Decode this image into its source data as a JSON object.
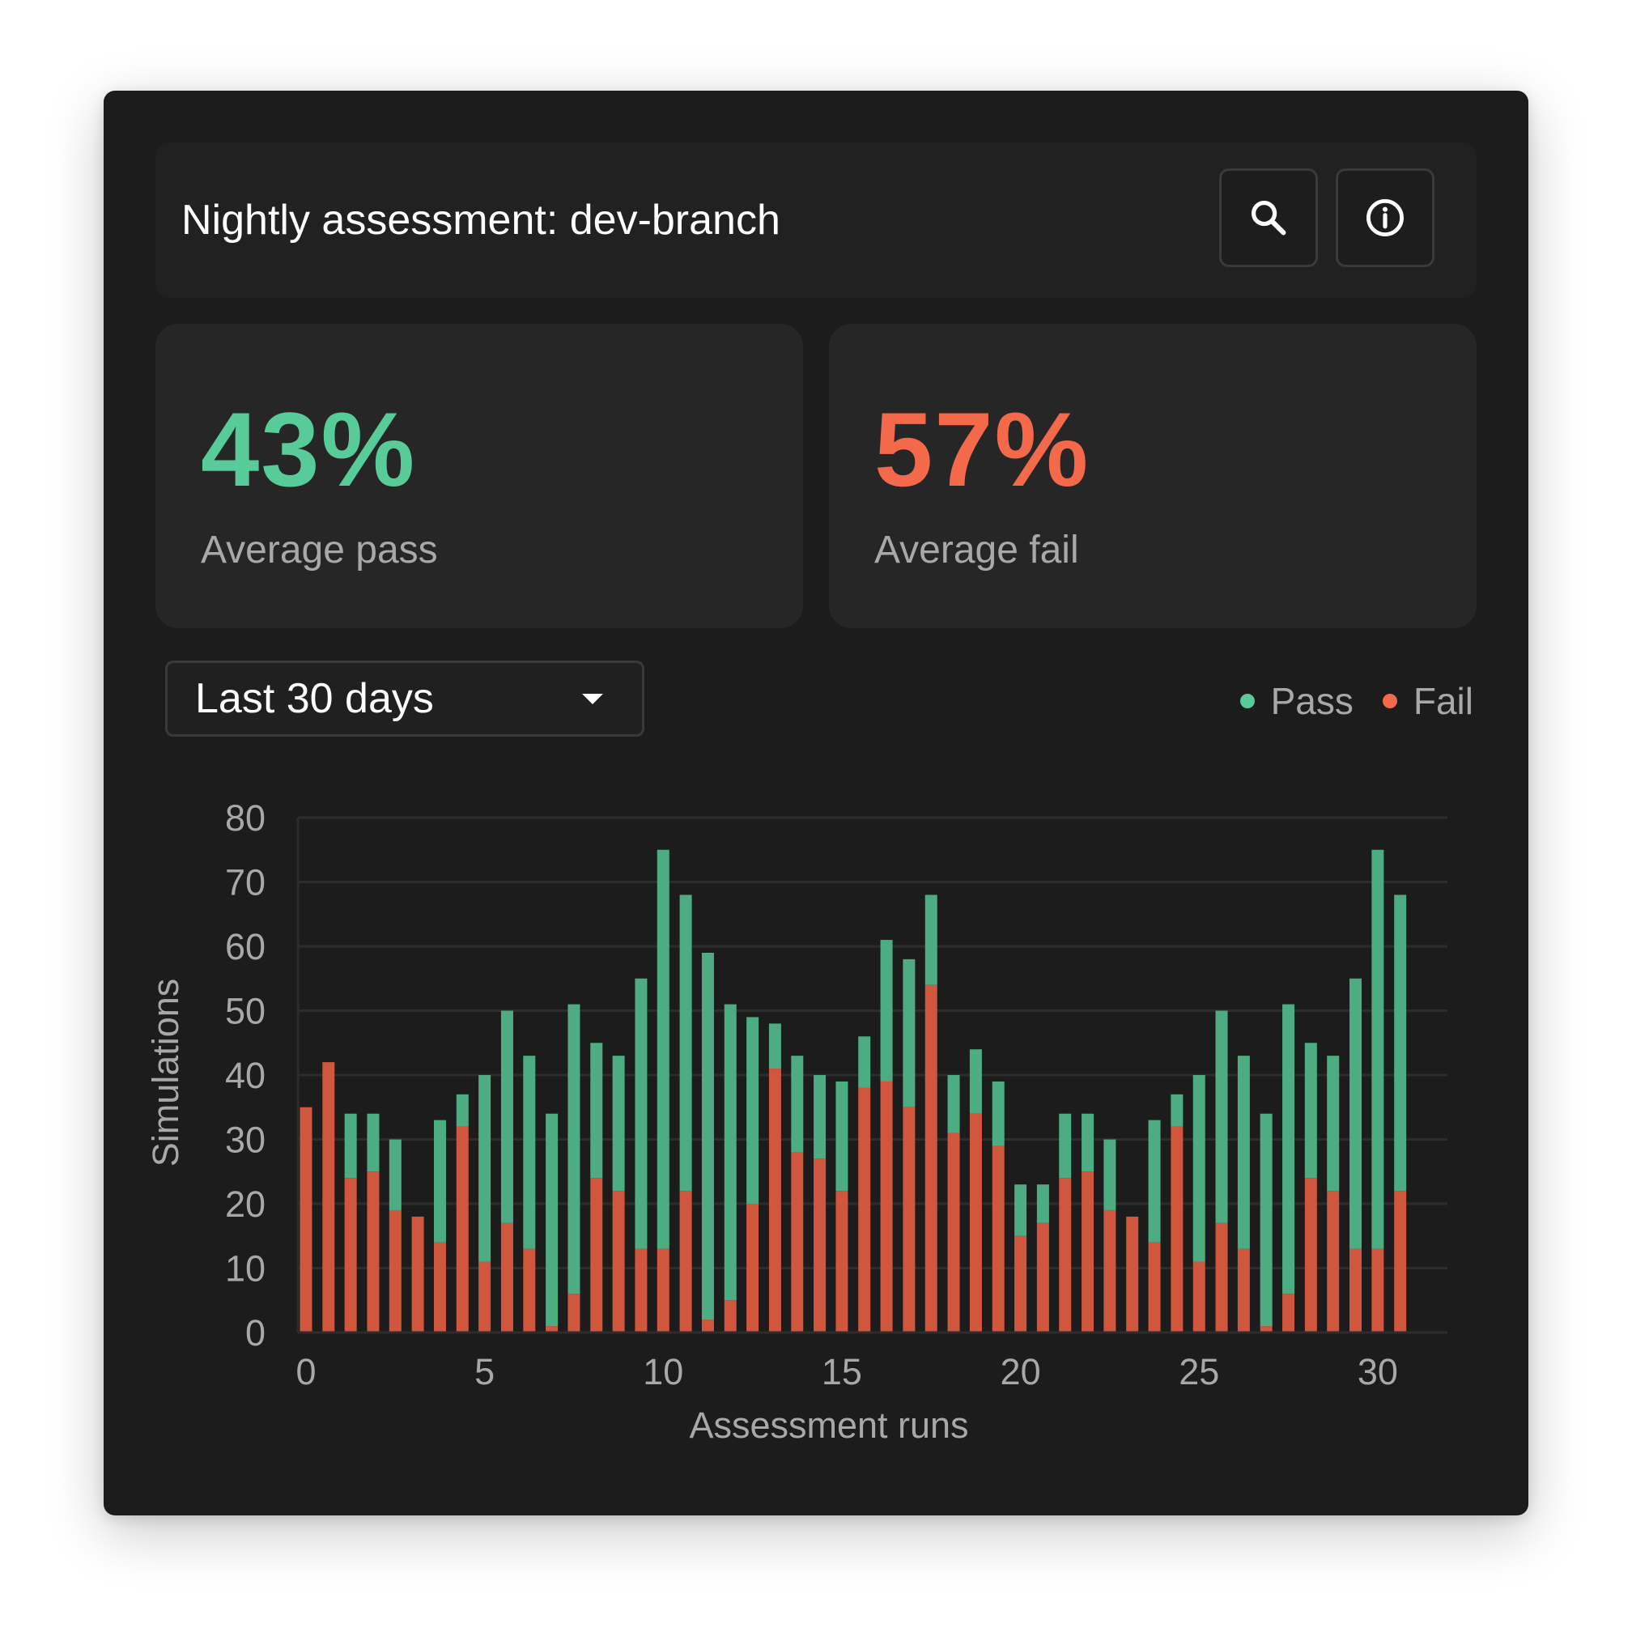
{
  "header": {
    "title": "Nightly assessment: dev-branch",
    "search_icon": "search-icon",
    "info_icon": "info-icon"
  },
  "stats": {
    "pass": {
      "value": "43%",
      "label": "Average pass"
    },
    "fail": {
      "value": "57%",
      "label": "Average fail"
    }
  },
  "filter": {
    "selected": "Last 30 days"
  },
  "legend": {
    "pass": "Pass",
    "fail": "Fail"
  },
  "colors": {
    "pass": "#4dac82",
    "fail": "#d0573e",
    "pass_accent": "#57cc99",
    "fail_accent": "#f4694a"
  },
  "chart_data": {
    "type": "bar",
    "stacked": true,
    "xlabel": "Assessment runs",
    "ylabel": "Simulations",
    "ylim": [
      0,
      80
    ],
    "yticks": [
      0,
      10,
      20,
      30,
      40,
      50,
      60,
      70,
      80
    ],
    "xlim": [
      0,
      31
    ],
    "xticks": [
      0,
      5,
      10,
      15,
      20,
      25,
      30
    ],
    "grid": true,
    "legend_position": "top-right",
    "x": [
      0,
      0.63,
      1.25,
      1.88,
      2.5,
      3.13,
      3.75,
      4.38,
      5,
      5.63,
      6.25,
      6.88,
      7.5,
      8.13,
      8.75,
      9.38,
      10,
      10.63,
      11.25,
      11.88,
      12.5,
      13.13,
      13.75,
      14.38,
      15,
      15.63,
      16.25,
      16.88,
      17.5,
      18.13,
      18.75,
      19.38,
      20,
      20.63,
      21.25,
      21.88,
      22.5,
      23.13,
      23.75,
      24.38,
      25,
      25.63,
      26.25,
      26.88,
      27.5,
      28.13,
      28.75,
      29.38,
      30,
      30.63
    ],
    "series": [
      {
        "name": "Fail",
        "values": [
          35,
          42,
          24,
          25,
          19,
          18,
          14,
          32,
          11,
          17,
          13,
          1,
          6,
          24,
          22,
          13,
          13,
          22,
          2,
          5,
          20,
          41,
          28,
          27,
          22,
          38,
          39,
          35,
          54,
          31,
          34,
          29,
          15,
          17,
          24,
          25,
          19,
          18,
          14,
          32,
          11,
          17,
          13,
          1,
          6,
          24,
          22,
          13,
          13,
          22
        ]
      },
      {
        "name": "Pass",
        "values": [
          0,
          0,
          10,
          9,
          11,
          0,
          19,
          5,
          29,
          33,
          30,
          33,
          45,
          21,
          21,
          42,
          62,
          46,
          57,
          46,
          29,
          7,
          15,
          13,
          17,
          8,
          22,
          23,
          14,
          9,
          10,
          10,
          8,
          6,
          10,
          9,
          11,
          0,
          19,
          5,
          29,
          33,
          30,
          33,
          45,
          21,
          21,
          42,
          62,
          46
        ]
      }
    ]
  }
}
